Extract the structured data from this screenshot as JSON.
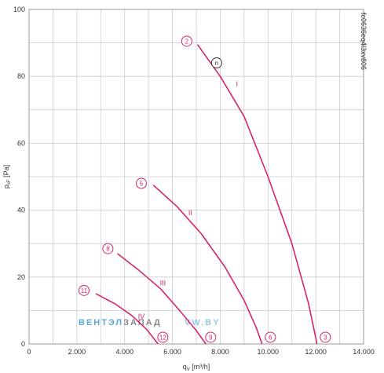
{
  "chart_data": {
    "type": "line",
    "xlabel": "q",
    "xlabel_sub": "V",
    "xlabel_unit": " [m³/h]",
    "ylabel": "p",
    "ylabel_sub": "sF",
    "ylabel_unit": " [Pa]",
    "xlim": [
      0,
      14000
    ],
    "ylim": [
      0,
      100
    ],
    "x_ticks": [
      0,
      2000,
      4000,
      6000,
      8000,
      10000,
      12000,
      14000
    ],
    "x_tick_labels": [
      "0",
      "2.000",
      "4.000",
      "6.000",
      "8.000",
      "10.000",
      "12.000",
      "14.000"
    ],
    "y_ticks": [
      0,
      20,
      40,
      60,
      80,
      100
    ],
    "y_tick_labels": [
      "0",
      "20",
      "40",
      "60",
      "80",
      "100"
    ],
    "grid": true,
    "line_color": "#d6246e",
    "grid_color": "#cccccc",
    "series": [
      {
        "name": "I",
        "label_pos": [
          8700,
          77
        ],
        "points": [
          [
            7050,
            89.5
          ],
          [
            8000,
            80
          ],
          [
            9000,
            68
          ],
          [
            10000,
            50
          ],
          [
            11000,
            30
          ],
          [
            11700,
            12
          ],
          [
            12050,
            0
          ]
        ]
      },
      {
        "name": "II",
        "label_pos": [
          6750,
          38.5
        ],
        "points": [
          [
            5200,
            47.5
          ],
          [
            6200,
            41
          ],
          [
            7200,
            33
          ],
          [
            8200,
            23
          ],
          [
            9000,
            13
          ],
          [
            9500,
            5
          ],
          [
            9750,
            0
          ]
        ]
      },
      {
        "name": "III",
        "label_pos": [
          5600,
          17.5
        ],
        "points": [
          [
            3700,
            27
          ],
          [
            4600,
            22
          ],
          [
            5500,
            16.5
          ],
          [
            6300,
            10
          ],
          [
            7000,
            4
          ],
          [
            7400,
            0
          ]
        ]
      },
      {
        "name": "IV",
        "label_pos": [
          4700,
          7.5
        ],
        "points": [
          [
            2800,
            15
          ],
          [
            3600,
            12
          ],
          [
            4300,
            8.5
          ],
          [
            4900,
            4.5
          ],
          [
            5400,
            0
          ]
        ]
      }
    ],
    "markers": [
      {
        "label": "2",
        "x": 6600,
        "y": 90.5,
        "style": "pink"
      },
      {
        "label": "n",
        "x": 7850,
        "y": 84,
        "style": "dark"
      },
      {
        "label": "3",
        "x": 12400,
        "y": 2,
        "style": "pink"
      },
      {
        "label": "5",
        "x": 4700,
        "y": 48,
        "style": "pink"
      },
      {
        "label": "6",
        "x": 10100,
        "y": 2,
        "style": "pink"
      },
      {
        "label": "8",
        "x": 3300,
        "y": 28.5,
        "style": "pink"
      },
      {
        "label": "9",
        "x": 7600,
        "y": 2,
        "style": "pink"
      },
      {
        "label": "11",
        "x": 2300,
        "y": 16,
        "style": "pink"
      },
      {
        "label": "12",
        "x": 5600,
        "y": 2,
        "style": "pink"
      }
    ],
    "side_code": "fc0636eq4l3xv806",
    "watermark": {
      "part1": "ВЕНТЭЛ",
      "part2": "ЗАПАД",
      "part3": "VW.BY",
      "color1": "#5aa9d6",
      "color2": "#888888"
    }
  }
}
